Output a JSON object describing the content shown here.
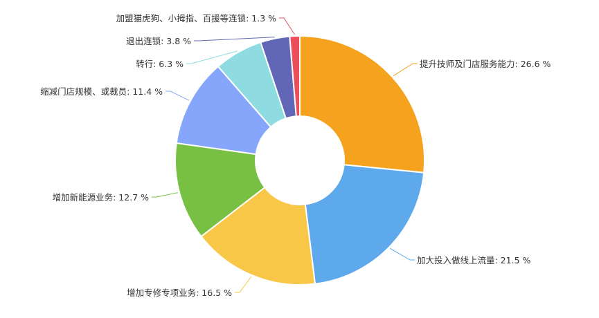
{
  "chart_data": {
    "type": "pie",
    "variant": "donut",
    "start": "top, clockwise",
    "slices": [
      {
        "label": "提升技师及门店服务能力: 26.6 %",
        "value": 26.6,
        "color": "#f5a21f"
      },
      {
        "label": "加大投入做线上流量: 21.5 %",
        "value": 21.5,
        "color": "#5ea9ec"
      },
      {
        "label": "增加专修专项业务: 16.5 %",
        "value": 16.5,
        "color": "#f9c748"
      },
      {
        "label": "增加新能源业务: 12.7 %",
        "value": 12.7,
        "color": "#78c043"
      },
      {
        "label": "缩减门店规模、或裁员: 11.4 %",
        "value": 11.4,
        "color": "#86a6fb"
      },
      {
        "label": "转行: 6.3 %",
        "value": 6.3,
        "color": "#8edbe1"
      },
      {
        "label": "退出连锁: 3.8 %",
        "value": 3.8,
        "color": "#6167b6"
      },
      {
        "label": "加盟猫虎狗、小拇指、百援等连锁: 1.3 %",
        "value": 1.3,
        "color": "#ea4f5a"
      }
    ]
  }
}
